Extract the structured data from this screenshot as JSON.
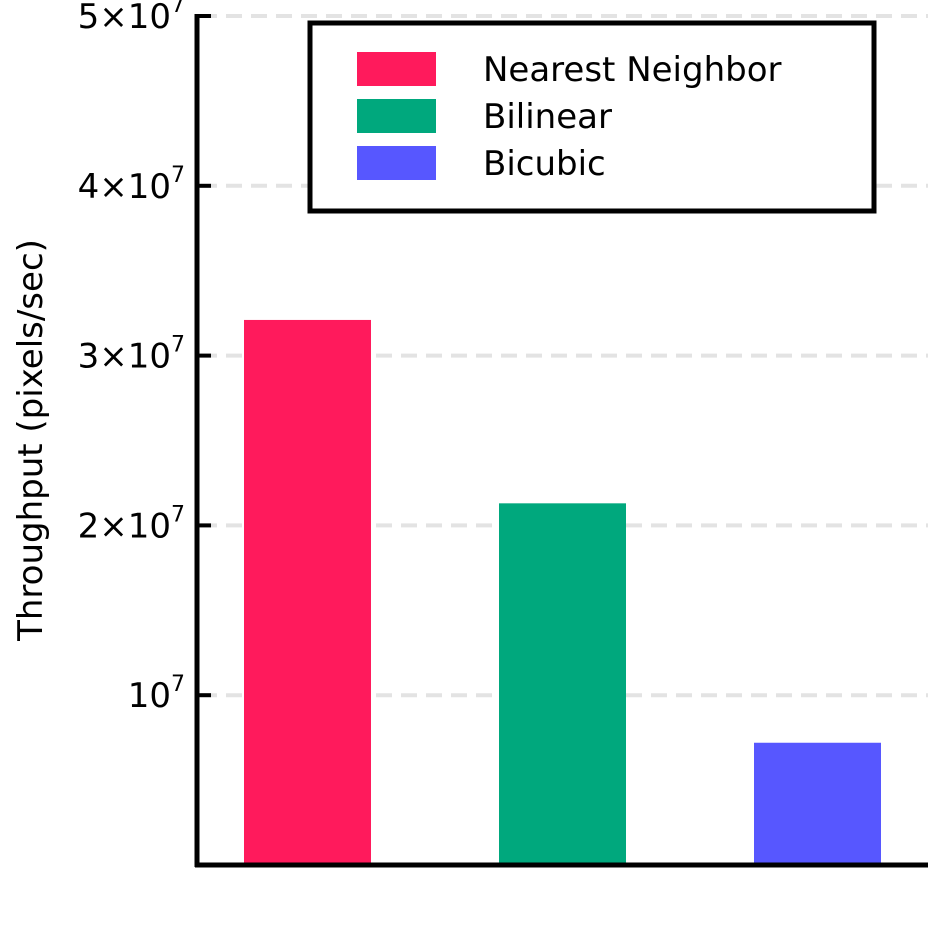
{
  "chart_data": {
    "type": "bar",
    "title": "",
    "xlabel": "",
    "ylabel": "Throughput (pixels/sec)",
    "ylim": [
      0,
      50000000
    ],
    "grid": true,
    "legend_position": "top-right",
    "y_ticks": [
      {
        "value": 10000000,
        "mantissa": "",
        "base": "10",
        "exp": "7"
      },
      {
        "value": 20000000,
        "mantissa": "2×",
        "base": "10",
        "exp": "7"
      },
      {
        "value": 30000000,
        "mantissa": "3×",
        "base": "10",
        "exp": "7"
      },
      {
        "value": 40000000,
        "mantissa": "4×",
        "base": "10",
        "exp": "7"
      },
      {
        "value": 50000000,
        "mantissa": "5×",
        "base": "10",
        "exp": "7"
      }
    ],
    "series": [
      {
        "name": "Nearest Neighbor",
        "value": 32100000,
        "color": "#ff1a5c"
      },
      {
        "name": "Bilinear",
        "value": 21300000,
        "color": "#00a87d"
      },
      {
        "name": "Bicubic",
        "value": 7200000,
        "color": "#5757ff"
      }
    ]
  }
}
